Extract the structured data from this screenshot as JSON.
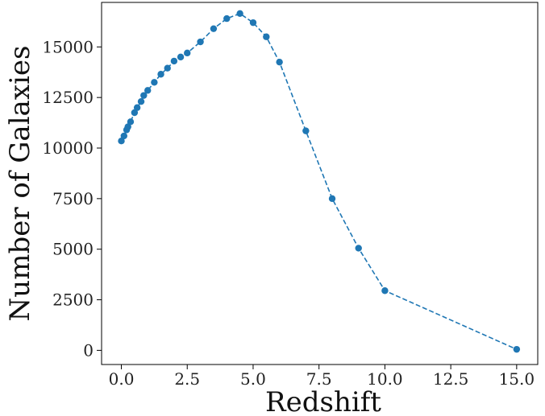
{
  "chart_data": {
    "type": "line",
    "title": "",
    "xlabel": "Redshift",
    "ylabel": "Number of Galaxies",
    "xlim": [
      -0.75,
      15.8
    ],
    "ylim": [
      -700,
      17200
    ],
    "x_ticks": [
      0.0,
      2.5,
      5.0,
      7.5,
      10.0,
      12.5,
      15.0
    ],
    "x_tick_labels": [
      "0.0",
      "2.5",
      "5.0",
      "7.5",
      "10.0",
      "12.5",
      "15.0"
    ],
    "y_ticks": [
      0,
      2500,
      5000,
      7500,
      10000,
      12500,
      15000
    ],
    "y_tick_labels": [
      "0",
      "2500",
      "5000",
      "7500",
      "10000",
      "12500",
      "15000"
    ],
    "grid": false,
    "line_style": "dashed",
    "marker": "circle",
    "color": "#1f77b4",
    "series": [
      {
        "name": "",
        "x": [
          0.0,
          0.1,
          0.2,
          0.25,
          0.35,
          0.5,
          0.6,
          0.75,
          0.85,
          1.0,
          1.25,
          1.5,
          1.75,
          2.0,
          2.25,
          2.5,
          3.0,
          3.5,
          4.0,
          4.5,
          5.0,
          5.5,
          6.0,
          7.0,
          8.0,
          9.0,
          10.0,
          15.0
        ],
        "y": [
          10350,
          10600,
          10900,
          11050,
          11300,
          11750,
          12000,
          12300,
          12600,
          12850,
          13250,
          13650,
          13950,
          14300,
          14500,
          14700,
          15250,
          15900,
          16400,
          16650,
          16200,
          15500,
          14250,
          10850,
          7500,
          5050,
          2950,
          50
        ]
      }
    ]
  }
}
